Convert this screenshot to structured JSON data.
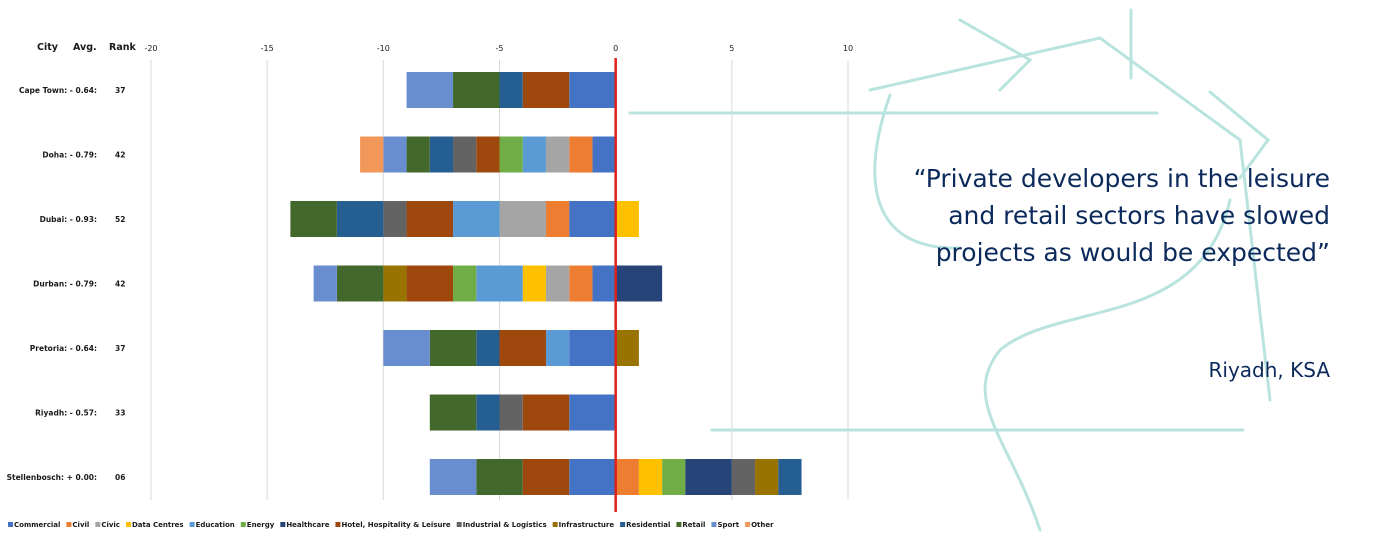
{
  "header": {
    "city": "City",
    "avg": "Avg.",
    "rank": "Rank"
  },
  "quote": "“Private developers in the leisure and retail sectors have slowed projects as would be expected”",
  "quote_author": "Riyadh, KSA",
  "colors": {
    "Commercial": "#4472c4",
    "Civil": "#ed7d31",
    "Civic": "#a5a5a5",
    "Data Centres": "#ffc000",
    "Education": "#5b9bd5",
    "Energy": "#70ad47",
    "Healthcare": "#264478",
    "Hotel, Hospitality & Leisure": "#9e480e",
    "Industrial & Logistics": "#636363",
    "Infrastructure": "#997300",
    "Residential": "#255e91",
    "Retail": "#43682b",
    "Sport": "#698ed0",
    "Other": "#f1975a",
    "zero_line": "#e0201b",
    "grid": "#d9d9d9",
    "decor": "#b9e3de"
  },
  "chart_data": {
    "type": "bar",
    "orientation": "horizontal",
    "stacked": true,
    "xlim": [
      -20,
      10
    ],
    "x_ticks": [
      -20,
      -15,
      -10,
      -5,
      0,
      5,
      10
    ],
    "grid": true,
    "legend_position": "bottom-left",
    "legend": [
      "Commercial",
      "Civil",
      "Civic",
      "Data Centres",
      "Education",
      "Energy",
      "Healthcare",
      "Hotel, Hospitality & Leisure",
      "Industrial & Logistics",
      "Infrastructure",
      "Residential",
      "Retail",
      "Sport",
      "Other"
    ],
    "rows": [
      {
        "city": "Cape Town:",
        "avg": "- 0.64:",
        "rank": "37",
        "negative": [
          [
            "Commercial",
            2
          ],
          [
            "Hotel, Hospitality & Leisure",
            2
          ],
          [
            "Residential",
            1
          ],
          [
            "Retail",
            2
          ],
          [
            "Sport",
            2
          ]
        ],
        "positive": []
      },
      {
        "city": "Doha:",
        "avg": "- 0.79:",
        "rank": "42",
        "negative": [
          [
            "Commercial",
            1
          ],
          [
            "Civil",
            1
          ],
          [
            "Civic",
            1
          ],
          [
            "Education",
            1
          ],
          [
            "Energy",
            1
          ],
          [
            "Hotel, Hospitality & Leisure",
            1
          ],
          [
            "Industrial & Logistics",
            1
          ],
          [
            "Residential",
            1
          ],
          [
            "Retail",
            1
          ],
          [
            "Sport",
            1
          ],
          [
            "Other",
            1
          ]
        ],
        "positive": []
      },
      {
        "city": "Dubai:",
        "avg": "- 0.93:",
        "rank": "52",
        "negative": [
          [
            "Commercial",
            2
          ],
          [
            "Civil",
            1
          ],
          [
            "Civic",
            2
          ],
          [
            "Education",
            2
          ],
          [
            "Hotel, Hospitality & Leisure",
            2
          ],
          [
            "Industrial & Logistics",
            1
          ],
          [
            "Residential",
            2
          ],
          [
            "Retail",
            2
          ]
        ],
        "positive": [
          [
            "Data Centres",
            1
          ]
        ]
      },
      {
        "city": "Durban:",
        "avg": "- 0.79:",
        "rank": "42",
        "negative": [
          [
            "Commercial",
            1
          ],
          [
            "Civil",
            1
          ],
          [
            "Civic",
            1
          ],
          [
            "Data Centres",
            1
          ],
          [
            "Education",
            2
          ],
          [
            "Energy",
            1
          ],
          [
            "Hotel, Hospitality & Leisure",
            2
          ],
          [
            "Infrastructure",
            1
          ],
          [
            "Retail",
            2
          ],
          [
            "Sport",
            1
          ]
        ],
        "positive": [
          [
            "Healthcare",
            2
          ]
        ]
      },
      {
        "city": "Pretoria:",
        "avg": "- 0.64:",
        "rank": "37",
        "negative": [
          [
            "Commercial",
            2
          ],
          [
            "Education",
            1
          ],
          [
            "Hotel, Hospitality & Leisure",
            2
          ],
          [
            "Residential",
            1
          ],
          [
            "Retail",
            2
          ],
          [
            "Sport",
            2
          ]
        ],
        "positive": [
          [
            "Infrastructure",
            1
          ]
        ]
      },
      {
        "city": "Riyadh:",
        "avg": "- 0.57:",
        "rank": "33",
        "negative": [
          [
            "Commercial",
            2
          ],
          [
            "Hotel, Hospitality & Leisure",
            2
          ],
          [
            "Industrial & Logistics",
            1
          ],
          [
            "Residential",
            1
          ],
          [
            "Retail",
            2
          ]
        ],
        "positive": []
      },
      {
        "city": "Stellenbosch:",
        "avg": "+ 0.00:",
        "rank": "06",
        "negative": [
          [
            "Commercial",
            2
          ],
          [
            "Hotel, Hospitality & Leisure",
            2
          ],
          [
            "Retail",
            2
          ],
          [
            "Sport",
            2
          ]
        ],
        "positive": [
          [
            "Civil",
            1
          ],
          [
            "Data Centres",
            1
          ],
          [
            "Energy",
            1
          ],
          [
            "Healthcare",
            2
          ],
          [
            "Industrial & Logistics",
            1
          ],
          [
            "Infrastructure",
            1
          ],
          [
            "Residential",
            1
          ]
        ]
      }
    ]
  }
}
